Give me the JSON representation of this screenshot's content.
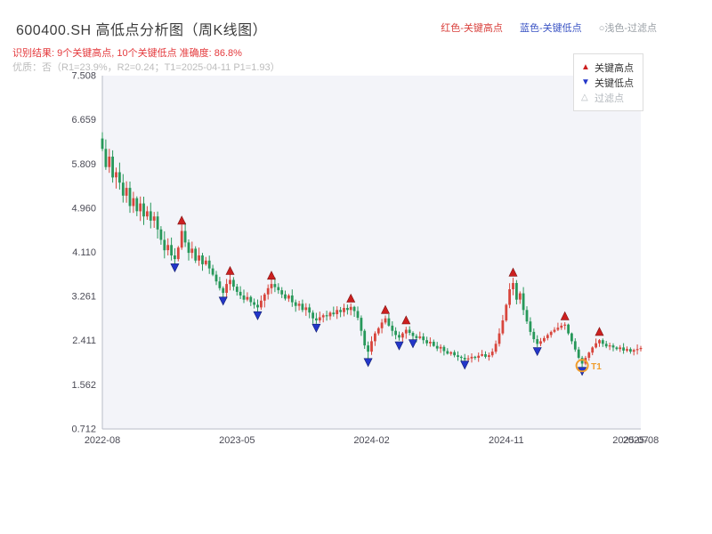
{
  "header": {
    "title": "600400.SH 高低点分析图（周K线图）",
    "legend_top": [
      {
        "label": "红色-关键高点",
        "color": "#d9413d"
      },
      {
        "label": "蓝色-关键低点",
        "color": "#3b54c4"
      },
      {
        "label": "○浅色-过滤点",
        "color": "#9aa0a6"
      }
    ],
    "result_line": "识别结果: 9个关键高点, 10个关键低点  准确度: 86.8%",
    "quality_line": "优质：否（R1=23.9%，R2=0.24；T1=2025-04-11 P1=1.93）"
  },
  "chart_legend": {
    "items": [
      {
        "label": "关键高点",
        "marker": "up-triangle",
        "color": "#cc1f1f"
      },
      {
        "label": "关键低点",
        "marker": "down-triangle",
        "color": "#2336c9"
      },
      {
        "label": "过滤点",
        "marker": "open-triangle",
        "color": "#b3b8bd"
      }
    ]
  },
  "chart_data": {
    "type": "candlestick",
    "title": "600400.SH 高低点分析图（周K线图）",
    "xlabel": "",
    "ylabel": "",
    "grid": false,
    "legend_position": "top-right",
    "ylim": [
      0.712,
      7.508
    ],
    "y_ticks": [
      7.508,
      6.659,
      5.809,
      4.96,
      4.11,
      3.261,
      2.411,
      1.562,
      0.712
    ],
    "x_ticks": [
      {
        "week": 0,
        "label": "2022-08"
      },
      {
        "week": 39,
        "label": "2023-05"
      },
      {
        "week": 78,
        "label": "2024-02"
      },
      {
        "week": 117,
        "label": "2024-11"
      },
      {
        "week": 153,
        "label": "2025-07"
      },
      {
        "week": 156,
        "label": "2025-08"
      }
    ],
    "first_open": 6.3,
    "closes": [
      6.1,
      5.75,
      5.95,
      5.55,
      5.65,
      5.45,
      5.2,
      5.35,
      5.0,
      5.15,
      4.9,
      5.05,
      4.8,
      4.9,
      4.72,
      4.8,
      4.55,
      4.35,
      4.15,
      4.25,
      4.05,
      3.98,
      4.2,
      4.52,
      4.3,
      4.1,
      4.18,
      3.95,
      4.05,
      3.88,
      3.95,
      3.8,
      3.68,
      3.55,
      3.42,
      3.33,
      3.5,
      3.58,
      3.45,
      3.35,
      3.28,
      3.2,
      3.25,
      3.15,
      3.1,
      3.05,
      3.18,
      3.3,
      3.42,
      3.5,
      3.44,
      3.38,
      3.3,
      3.22,
      3.28,
      3.15,
      3.08,
      3.12,
      3.0,
      3.05,
      2.95,
      2.84,
      2.8,
      2.86,
      2.9,
      2.88,
      2.95,
      2.92,
      3.0,
      2.96,
      3.04,
      3.0,
      3.06,
      2.98,
      2.85,
      2.6,
      2.32,
      2.2,
      2.4,
      2.55,
      2.65,
      2.76,
      2.84,
      2.7,
      2.6,
      2.52,
      2.47,
      2.55,
      2.62,
      2.56,
      2.5,
      2.46,
      2.49,
      2.42,
      2.36,
      2.39,
      2.31,
      2.26,
      2.29,
      2.21,
      2.16,
      2.19,
      2.13,
      2.1,
      2.08,
      2.05,
      2.07,
      2.1,
      2.08,
      2.12,
      2.15,
      2.1,
      2.13,
      2.2,
      2.35,
      2.55,
      2.8,
      3.1,
      3.4,
      3.52,
      3.2,
      3.32,
      3.0,
      2.78,
      2.58,
      2.44,
      2.35,
      2.4,
      2.46,
      2.52,
      2.58,
      2.62,
      2.66,
      2.7,
      2.72,
      2.55,
      2.4,
      2.24,
      2.08,
      1.97,
      2.08,
      2.18,
      2.28,
      2.36,
      2.42,
      2.35,
      2.3,
      2.32,
      2.28,
      2.25,
      2.28,
      2.22,
      2.25,
      2.2,
      2.23,
      2.25,
      2.27
    ],
    "high_overrides": {
      "0": 6.42,
      "119": 3.62
    },
    "low_overrides": {
      "77": 2.03
    },
    "markers": {
      "key_highs": [
        {
          "week": 23,
          "price": 4.72
        },
        {
          "week": 37,
          "price": 3.75
        },
        {
          "week": 49,
          "price": 3.66
        },
        {
          "week": 72,
          "price": 3.22
        },
        {
          "week": 82,
          "price": 3.0
        },
        {
          "week": 88,
          "price": 2.8
        },
        {
          "week": 119,
          "price": 3.72
        },
        {
          "week": 134,
          "price": 2.88
        },
        {
          "week": 144,
          "price": 2.58
        }
      ],
      "key_lows": [
        {
          "week": 21,
          "price": 3.82
        },
        {
          "week": 35,
          "price": 3.18
        },
        {
          "week": 45,
          "price": 2.9
        },
        {
          "week": 62,
          "price": 2.66
        },
        {
          "week": 77,
          "price": 2.0
        },
        {
          "week": 86,
          "price": 2.32
        },
        {
          "week": 90,
          "price": 2.36
        },
        {
          "week": 105,
          "price": 1.95
        },
        {
          "week": 126,
          "price": 2.21
        },
        {
          "week": 139,
          "price": 1.83
        }
      ],
      "t1": {
        "week": 139,
        "price": 1.93,
        "label": "T1"
      }
    },
    "colors": {
      "up": "#d8453c",
      "down": "#27985a",
      "high_marker": "#cc1f1f",
      "low_marker": "#2336c9",
      "t1": "#f09d2e",
      "axis": "#b9bcc7",
      "plot_bg": "#f3f4f9"
    }
  }
}
